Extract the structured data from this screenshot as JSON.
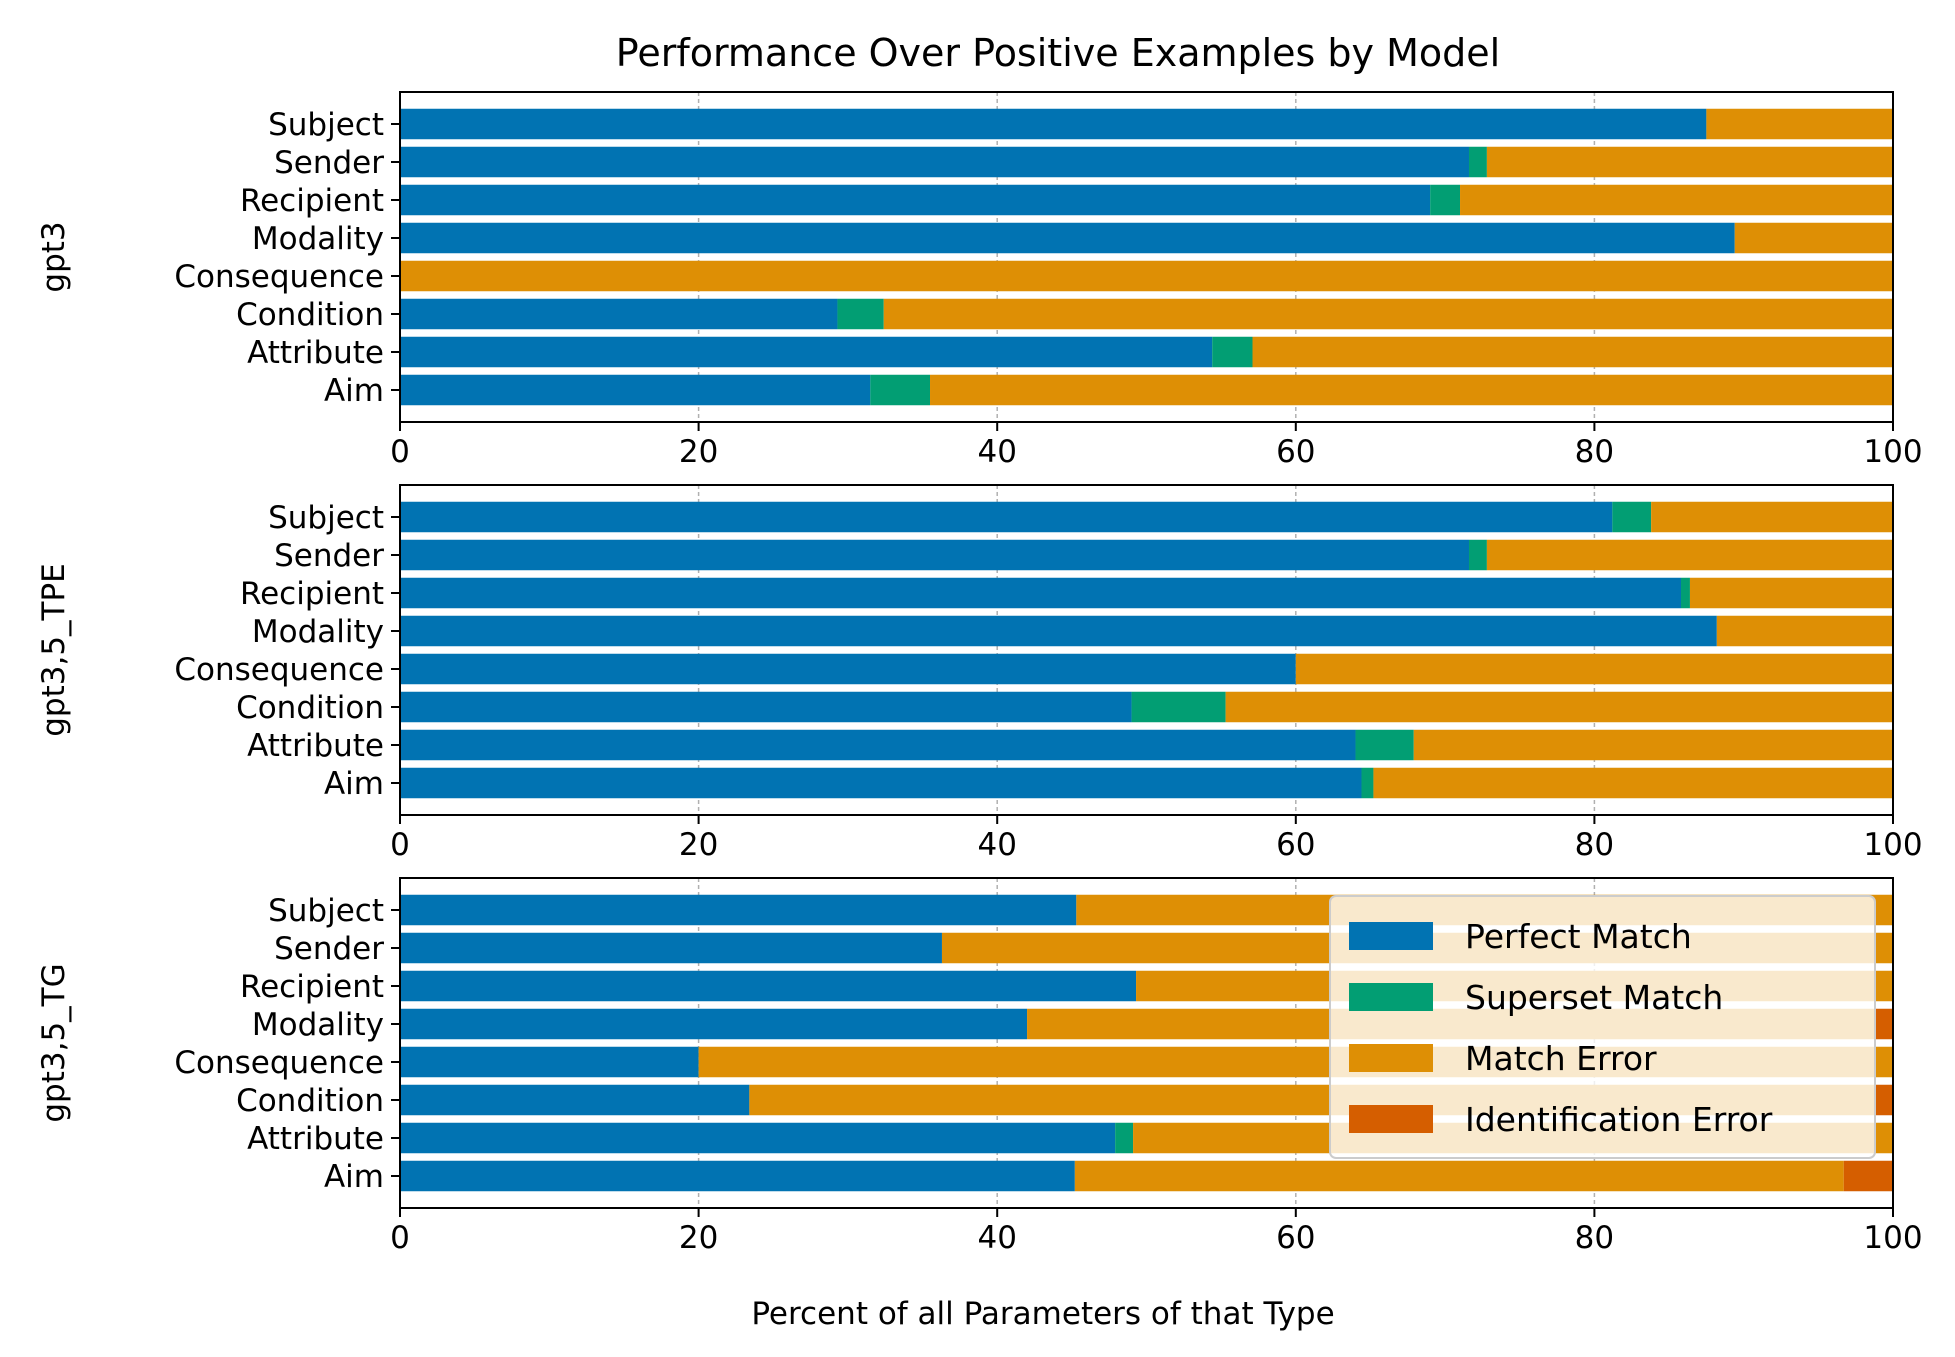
{
  "chart_data": {
    "type": "bar",
    "orientation": "horizontal",
    "stacked": true,
    "title": "Performance Over Positive Examples by Model",
    "xlabel": "Percent of all Parameters of that Type",
    "xlim": [
      0,
      100
    ],
    "xticks": [
      "0",
      "20",
      "40",
      "60",
      "80",
      "100"
    ],
    "grid": "x",
    "legend_position": "lower-right of bottom panel",
    "colors": {
      "Perfect Match": "#0173b2",
      "Superset Match": "#029e73",
      "Match Error": "#de8f05",
      "Identification Error": "#d55e00"
    },
    "categories": [
      "Subject",
      "Sender",
      "Recipient",
      "Modality",
      "Consequence",
      "Condition",
      "Attribute",
      "Aim"
    ],
    "legend": [
      "Perfect Match",
      "Superset Match",
      "Match Error",
      "Identification Error"
    ],
    "panels": [
      {
        "ylabel": "gpt3",
        "series": [
          {
            "name": "Perfect Match",
            "values": [
              87.5,
              71.6,
              69.0,
              89.4,
              0,
              29.3,
              54.4,
              31.5
            ]
          },
          {
            "name": "Superset Match",
            "values": [
              0,
              1.2,
              2.0,
              0,
              0,
              3.1,
              2.7,
              4.0
            ]
          },
          {
            "name": "Match Error",
            "values": [
              12.5,
              27.2,
              29.0,
              10.6,
              100,
              67.6,
              42.9,
              64.5
            ]
          },
          {
            "name": "Identification Error",
            "values": [
              0,
              0,
              0,
              0,
              0,
              0,
              0,
              0
            ]
          }
        ]
      },
      {
        "ylabel": "gpt3,5_TPE",
        "series": [
          {
            "name": "Perfect Match",
            "values": [
              81.2,
              71.6,
              85.8,
              88.2,
              60.0,
              49.0,
              64.0,
              64.4
            ]
          },
          {
            "name": "Superset Match",
            "values": [
              2.6,
              1.2,
              0.6,
              0,
              0,
              6.3,
              3.9,
              0.8
            ]
          },
          {
            "name": "Match Error",
            "values": [
              16.2,
              27.2,
              13.6,
              11.8,
              40.0,
              44.7,
              32.1,
              34.8
            ]
          },
          {
            "name": "Identification Error",
            "values": [
              0,
              0,
              0,
              0,
              0,
              0,
              0,
              0
            ]
          }
        ]
      },
      {
        "ylabel": "gpt3,5_TG",
        "series": [
          {
            "name": "Perfect Match",
            "values": [
              45.3,
              36.3,
              49.3,
              42.0,
              20.0,
              23.4,
              47.9,
              45.2
            ]
          },
          {
            "name": "Superset Match",
            "values": [
              0,
              0,
              0,
              0,
              0,
              0,
              1.2,
              0
            ]
          },
          {
            "name": "Match Error",
            "values": [
              54.7,
              63.7,
              50.7,
              56.8,
              80.0,
              75.4,
              50.9,
              51.5
            ]
          },
          {
            "name": "Identification Error",
            "values": [
              0,
              0,
              0,
              1.2,
              0,
              1.2,
              0,
              3.3
            ]
          }
        ]
      }
    ]
  }
}
